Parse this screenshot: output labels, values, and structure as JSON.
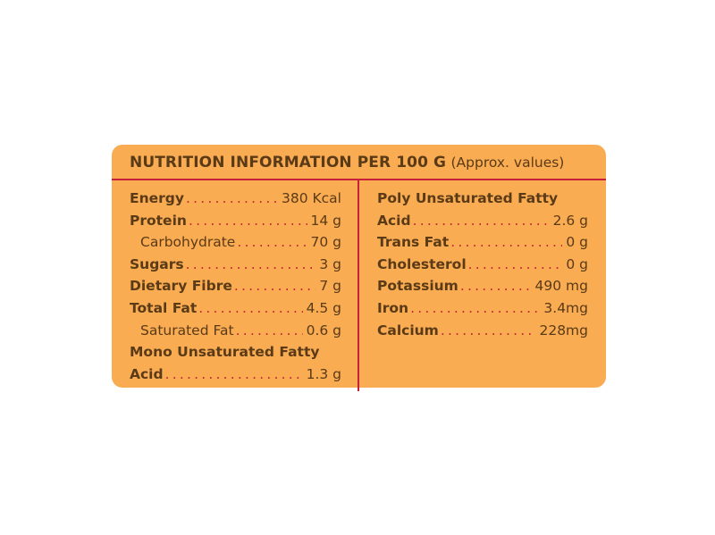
{
  "header": {
    "title": "NUTRITION INFORMATION PER 100 G",
    "subtitle": "(Approx. values)"
  },
  "colors": {
    "background": "#F9AC52",
    "text": "#5a3a17",
    "divider": "#c8203a"
  },
  "left": [
    {
      "label": "Energy",
      "value": "380 Kcal",
      "bold": true
    },
    {
      "label": "Protein",
      "value": "14 g",
      "bold": true
    },
    {
      "label": "Carbohydrate",
      "value": "70 g",
      "indent": true
    },
    {
      "label": "Sugars",
      "value": "3 g",
      "bold": true
    },
    {
      "label": "Dietary Fibre",
      "value": "7 g",
      "bold": true
    },
    {
      "label": "Total Fat",
      "value": "4.5 g",
      "bold": true
    },
    {
      "label": "Saturated Fat",
      "value": "0.6 g",
      "indent": true
    },
    {
      "label": "Mono Unsaturated Fatty",
      "bold": true
    },
    {
      "label": "Acid",
      "value": "1.3 g",
      "bold": true
    }
  ],
  "right": [
    {
      "label": "Poly Unsaturated Fatty",
      "bold": true
    },
    {
      "label": "Acid",
      "value": "2.6 g",
      "bold": true
    },
    {
      "label": "Trans Fat",
      "value": "0 g",
      "bold": true
    },
    {
      "label": "Cholesterol",
      "value": "0 g",
      "bold": true
    },
    {
      "label": "Potassium",
      "value": "490 mg",
      "bold": true
    },
    {
      "label": "Iron",
      "value": "3.4mg",
      "bold": true
    },
    {
      "label": "Calcium",
      "value": "228mg",
      "bold": true
    }
  ]
}
